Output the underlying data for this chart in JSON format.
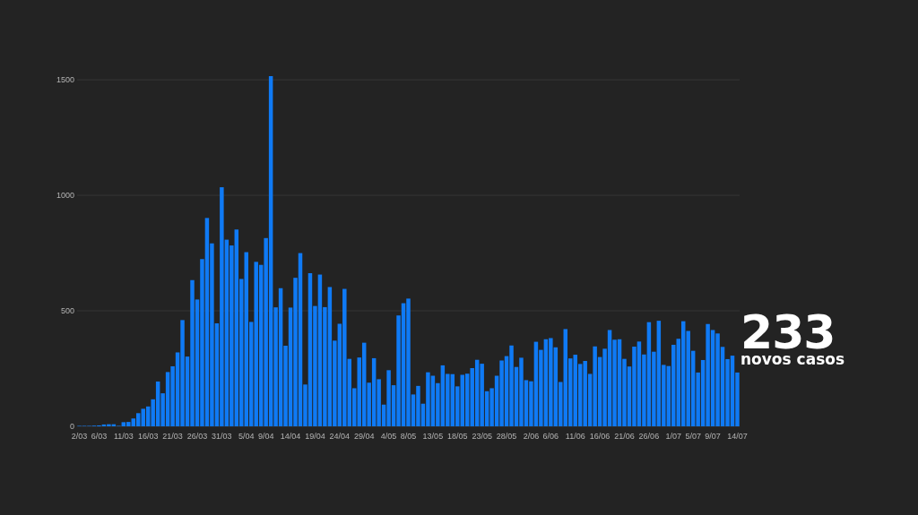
{
  "chart_data": {
    "type": "bar",
    "categories": [
      "2/03",
      null,
      null,
      null,
      "6/03",
      null,
      null,
      null,
      null,
      "11/03",
      null,
      null,
      null,
      null,
      "16/03",
      null,
      null,
      null,
      null,
      "21/03",
      null,
      null,
      null,
      null,
      "26/03",
      null,
      null,
      null,
      null,
      "31/03",
      null,
      null,
      null,
      null,
      "5/04",
      null,
      null,
      null,
      "9/04",
      null,
      null,
      null,
      null,
      "14/04",
      null,
      null,
      null,
      null,
      "19/04",
      null,
      null,
      null,
      null,
      "24/04",
      null,
      null,
      null,
      null,
      "29/04",
      null,
      null,
      null,
      null,
      "4/05",
      null,
      null,
      null,
      "8/05",
      null,
      null,
      null,
      null,
      "13/05",
      null,
      null,
      null,
      null,
      "18/05",
      null,
      null,
      null,
      null,
      "23/05",
      null,
      null,
      null,
      null,
      "28/05",
      null,
      null,
      null,
      null,
      "2/06",
      null,
      null,
      null,
      "6/06",
      null,
      null,
      null,
      null,
      "11/06",
      null,
      null,
      null,
      null,
      "16/06",
      null,
      null,
      null,
      null,
      "21/06",
      null,
      null,
      null,
      null,
      "26/06",
      null,
      null,
      null,
      null,
      "1/07",
      null,
      null,
      null,
      "5/07",
      null,
      null,
      null,
      "9/07",
      null,
      null,
      null,
      null,
      "14/07"
    ],
    "values": [
      2,
      2,
      2,
      3,
      4,
      8,
      9,
      9,
      2,
      18,
      19,
      34,
      57,
      76,
      86,
      117,
      194,
      143,
      235,
      260,
      320,
      460,
      302,
      633,
      549,
      724,
      902,
      792,
      446,
      1035,
      808,
      783,
      852,
      638,
      754,
      452,
      712,
      699,
      815,
      1516,
      515,
      598,
      349,
      514,
      643,
      750,
      181,
      663,
      521,
      657,
      516,
      603,
      371,
      444,
      595,
      292,
      165,
      298,
      362,
      189,
      295,
      204,
      94,
      243,
      178,
      480,
      533,
      553,
      138,
      175,
      98,
      234,
      219,
      187,
      264,
      227,
      226,
      173,
      223,
      228,
      252,
      288,
      271,
      152,
      165,
      219,
      285,
      304,
      350,
      257,
      297,
      200,
      195,
      366,
      331,
      377,
      382,
      342,
      192,
      421,
      294,
      310,
      270,
      283,
      227,
      346,
      300,
      336,
      417,
      375,
      377,
      292,
      259,
      345,
      367,
      311,
      451,
      323,
      457,
      266,
      261,
      353,
      379,
      455,
      413,
      327,
      233,
      287,
      443,
      417,
      402,
      344,
      291,
      306,
      233
    ],
    "color": "#0f7af5",
    "ylim": [
      0,
      1516
    ],
    "yticks": [
      0,
      500,
      1000,
      1500
    ],
    "grid": "y",
    "annotations": [
      "233",
      "novos casos"
    ]
  }
}
